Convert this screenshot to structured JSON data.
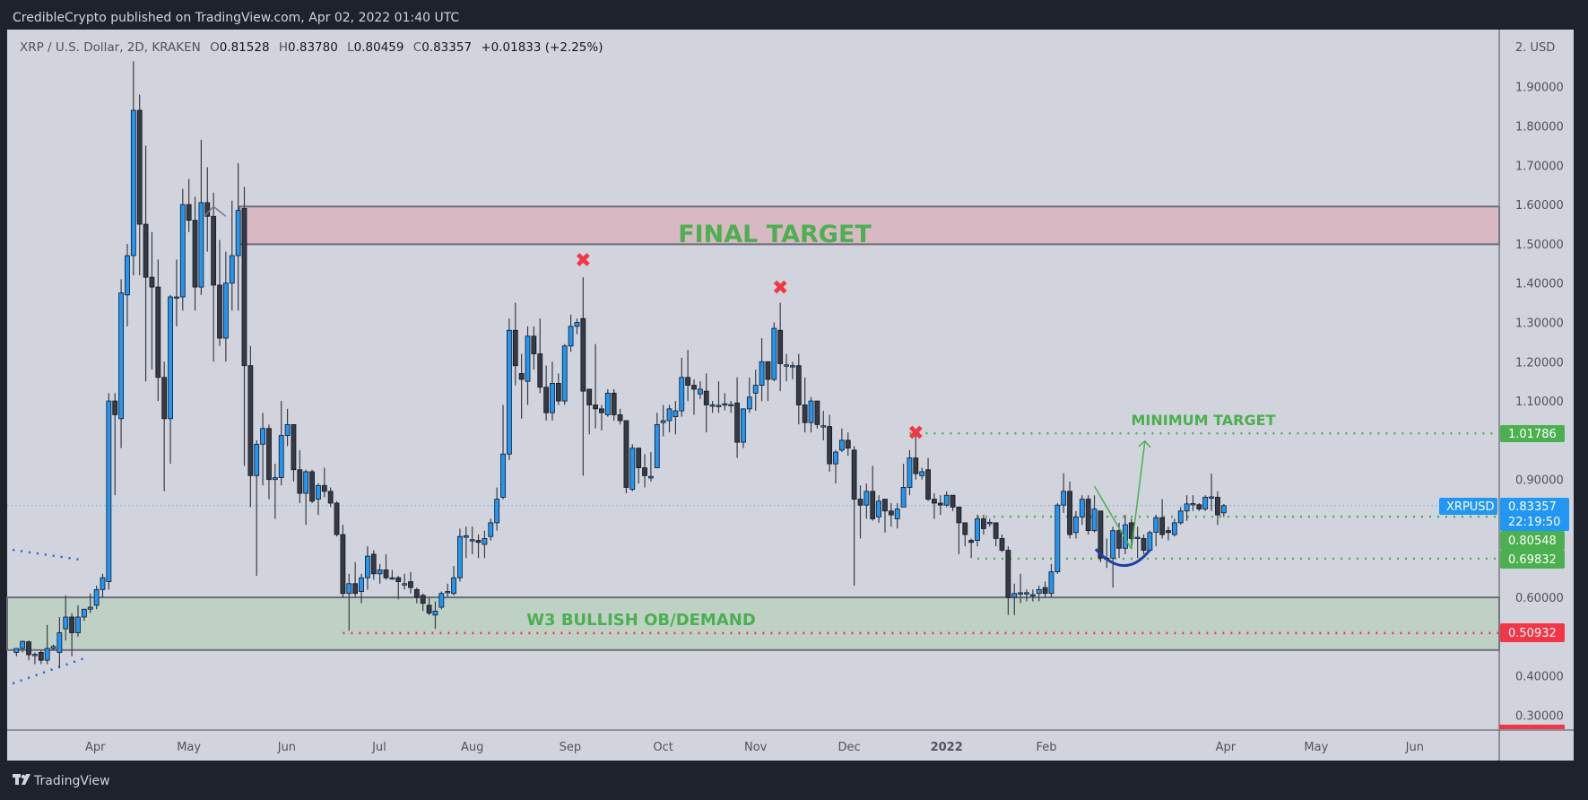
{
  "header": {
    "publisher_line": "CredibleCrypto published on TradingView.com, Apr 02, 2022 01:40 UTC"
  },
  "legend": {
    "symbol": "XRP / U.S. Dollar, 2D, KRAKEN",
    "o_label": "O",
    "o": "0.81528",
    "h_label": "H",
    "h": "0.83780",
    "l_label": "L",
    "l": "0.80459",
    "c_label": "C",
    "c": "0.83357",
    "change": "+0.01833 (+2.25%)"
  },
  "footer": {
    "brand": "TradingView"
  },
  "colors": {
    "up": "#2196f3",
    "down": "#363a45",
    "target_zone": "#d8b9c3",
    "demand_zone": "#bfd1c5",
    "green": "#4caf50",
    "red": "#f23645",
    "blue": "#2196f3",
    "chart_bg": "#d1d4dc",
    "frame": "#1e222d"
  },
  "price_axis": {
    "top_label": "2. USD",
    "ticks": [
      {
        "value": 1.9,
        "label": "1.90000"
      },
      {
        "value": 1.8,
        "label": "1.80000"
      },
      {
        "value": 1.7,
        "label": "1.70000"
      },
      {
        "value": 1.6,
        "label": "1.60000"
      },
      {
        "value": 1.5,
        "label": "1.50000"
      },
      {
        "value": 1.4,
        "label": "1.40000"
      },
      {
        "value": 1.3,
        "label": "1.30000"
      },
      {
        "value": 1.2,
        "label": "1.20000"
      },
      {
        "value": 1.1,
        "label": "1.10000"
      },
      {
        "value": 0.9,
        "label": "0.90000"
      },
      {
        "value": 0.6,
        "label": "0.60000"
      },
      {
        "value": 0.4,
        "label": "0.40000"
      },
      {
        "value": 0.3,
        "label": "0.30000"
      }
    ],
    "badges": {
      "min_target": "1.01786",
      "symbol": "XRPUSD",
      "last_price": "0.83357",
      "countdown": "22:19:50",
      "level_upper": "0.80548",
      "level_lower": "0.69832",
      "invalidation": "0.50932"
    }
  },
  "annotations": {
    "final_target": "FINAL TARGET",
    "minimum_target": "MINIMUM TARGET",
    "demand_zone": "W3 BULLISH OB/DEMAND",
    "x_marker": "✖"
  },
  "chart_data": {
    "type": "candlestick",
    "symbol": "XRPUSD",
    "timeframe": "2D",
    "exchange": "KRAKEN",
    "ylim": [
      0.27,
      2.0
    ],
    "xlim_index": [
      -1.5,
      239.1
    ],
    "x_ticks": [
      {
        "label": "Apr",
        "index": 12.8
      },
      {
        "label": "May",
        "index": 28.0
      },
      {
        "label": "Jun",
        "index": 43.9
      },
      {
        "label": "Jul",
        "index": 58.9
      },
      {
        "label": "Aug",
        "index": 74.0
      },
      {
        "label": "Sep",
        "index": 89.9
      },
      {
        "label": "Oct",
        "index": 105.0
      },
      {
        "label": "Nov",
        "index": 120.0
      },
      {
        "label": "Dec",
        "index": 135.2
      },
      {
        "label": "2022",
        "index": 151.0,
        "bold": true
      },
      {
        "label": "Feb",
        "index": 167.2
      },
      {
        "label": "Apr",
        "index": 196.3
      },
      {
        "label": "May",
        "index": 211.0
      },
      {
        "label": "Jun",
        "index": 227.0
      }
    ],
    "zones": [
      {
        "name": "final-target-zone",
        "from": 1.499,
        "to": 1.595,
        "start_index": 36.2
      },
      {
        "name": "demand-zone",
        "from": 0.466,
        "to": 0.6,
        "start_index": -1.5
      }
    ],
    "levels": [
      {
        "name": "minimum-target-level",
        "price": 1.01786,
        "start_index": 145,
        "color": "green"
      },
      {
        "name": "upper-support-level",
        "price": 0.80548,
        "start_index": 156,
        "color": "green"
      },
      {
        "name": "lower-support-level",
        "price": 0.69832,
        "start_index": 156,
        "color": "green"
      },
      {
        "name": "invalidation-level",
        "price": 0.50932,
        "start_index": 53,
        "color": "red"
      },
      {
        "name": "last-price-line",
        "price": 0.83357,
        "start_index": -1.5,
        "color": "blue"
      }
    ],
    "trendlines": [
      {
        "name": "upper-wedge-line",
        "points": [
          [
            -0.6,
            0.721
          ],
          [
            10.4,
            0.696
          ]
        ]
      },
      {
        "name": "lower-wedge-line",
        "points": [
          [
            -0.6,
            0.381
          ],
          [
            11.0,
            0.445
          ]
        ]
      }
    ],
    "x_markers": [
      [
        92,
        1.46
      ],
      [
        124,
        1.39
      ],
      [
        146,
        1.02
      ]
    ],
    "candles": [
      [
        0.46,
        0.47,
        0.45,
        0.47
      ],
      [
        0.47,
        0.49,
        0.46,
        0.488
      ],
      [
        0.487,
        0.49,
        0.44,
        0.454
      ],
      [
        0.455,
        0.46,
        0.43,
        0.455
      ],
      [
        0.46,
        0.465,
        0.43,
        0.44
      ],
      [
        0.44,
        0.53,
        0.43,
        0.47
      ],
      [
        0.47,
        0.48,
        0.465,
        0.475
      ],
      [
        0.46,
        0.55,
        0.42,
        0.51
      ],
      [
        0.52,
        0.605,
        0.49,
        0.55
      ],
      [
        0.55,
        0.56,
        0.45,
        0.51
      ],
      [
        0.51,
        0.58,
        0.5,
        0.55
      ],
      [
        0.55,
        0.57,
        0.54,
        0.57
      ],
      [
        0.57,
        0.61,
        0.56,
        0.575
      ],
      [
        0.58,
        0.63,
        0.57,
        0.62
      ],
      [
        0.62,
        0.66,
        0.6,
        0.65
      ],
      [
        0.64,
        1.12,
        0.62,
        1.1
      ],
      [
        1.1,
        1.12,
        0.86,
        1.065
      ],
      [
        1.055,
        1.41,
        0.98,
        1.375
      ],
      [
        1.37,
        1.5,
        1.29,
        1.47
      ],
      [
        1.47,
        1.965,
        1.42,
        1.84
      ],
      [
        1.84,
        1.88,
        1.42,
        1.55
      ],
      [
        1.55,
        1.75,
        1.15,
        1.415
      ],
      [
        1.415,
        1.53,
        1.18,
        1.39
      ],
      [
        1.39,
        1.46,
        1.1,
        1.16
      ],
      [
        1.16,
        1.2,
        0.87,
        1.055
      ],
      [
        1.055,
        1.37,
        0.94,
        1.365
      ],
      [
        1.362,
        1.46,
        1.29,
        1.365
      ],
      [
        1.365,
        1.64,
        1.33,
        1.6
      ],
      [
        1.6,
        1.665,
        1.53,
        1.56
      ],
      [
        1.56,
        1.62,
        1.33,
        1.39
      ],
      [
        1.39,
        1.765,
        1.37,
        1.605
      ],
      [
        1.605,
        1.695,
        1.48,
        1.57
      ],
      [
        1.57,
        1.63,
        1.2,
        1.395
      ],
      [
        1.395,
        1.51,
        1.24,
        1.26
      ],
      [
        1.26,
        1.48,
        1.2,
        1.4
      ],
      [
        1.4,
        1.61,
        1.33,
        1.47
      ],
      [
        1.47,
        1.705,
        1.33,
        1.585
      ],
      [
        1.59,
        1.645,
        0.935,
        1.19
      ],
      [
        1.19,
        1.24,
        0.83,
        0.91
      ],
      [
        0.91,
        1.0,
        0.655,
        0.99
      ],
      [
        0.99,
        1.07,
        0.885,
        1.03
      ],
      [
        1.03,
        1.04,
        0.85,
        0.9
      ],
      [
        0.9,
        0.94,
        0.8,
        0.905
      ],
      [
        0.905,
        1.1,
        0.885,
        1.012
      ],
      [
        1.012,
        1.08,
        0.985,
        1.04
      ],
      [
        1.04,
        1.04,
        0.895,
        0.925
      ],
      [
        0.925,
        0.975,
        0.84,
        0.865
      ],
      [
        0.865,
        0.925,
        0.785,
        0.92
      ],
      [
        0.92,
        0.925,
        0.84,
        0.845
      ],
      [
        0.85,
        0.89,
        0.81,
        0.885
      ],
      [
        0.885,
        0.93,
        0.855,
        0.87
      ],
      [
        0.87,
        0.88,
        0.83,
        0.84
      ],
      [
        0.84,
        0.845,
        0.755,
        0.76
      ],
      [
        0.76,
        0.785,
        0.6,
        0.61
      ],
      [
        0.61,
        0.66,
        0.515,
        0.635
      ],
      [
        0.635,
        0.69,
        0.6,
        0.61
      ],
      [
        0.615,
        0.66,
        0.585,
        0.65
      ],
      [
        0.65,
        0.73,
        0.62,
        0.705
      ],
      [
        0.71,
        0.72,
        0.645,
        0.66
      ],
      [
        0.66,
        0.685,
        0.635,
        0.67
      ],
      [
        0.67,
        0.71,
        0.645,
        0.65
      ],
      [
        0.65,
        0.67,
        0.645,
        0.65
      ],
      [
        0.65,
        0.655,
        0.595,
        0.64
      ],
      [
        0.635,
        0.66,
        0.62,
        0.635
      ],
      [
        0.64,
        0.665,
        0.61,
        0.625
      ],
      [
        0.62,
        0.625,
        0.585,
        0.6
      ],
      [
        0.605,
        0.61,
        0.565,
        0.585
      ],
      [
        0.58,
        0.6,
        0.555,
        0.56
      ],
      [
        0.555,
        0.59,
        0.52,
        0.565
      ],
      [
        0.575,
        0.615,
        0.57,
        0.61
      ],
      [
        0.612,
        0.635,
        0.6,
        0.615
      ],
      [
        0.61,
        0.68,
        0.605,
        0.65
      ],
      [
        0.65,
        0.775,
        0.64,
        0.755
      ],
      [
        0.753,
        0.78,
        0.7,
        0.757
      ],
      [
        0.745,
        0.78,
        0.71,
        0.747
      ],
      [
        0.745,
        0.76,
        0.7,
        0.74
      ],
      [
        0.735,
        0.77,
        0.7,
        0.75
      ],
      [
        0.755,
        0.8,
        0.745,
        0.79
      ],
      [
        0.79,
        0.88,
        0.77,
        0.85
      ],
      [
        0.855,
        1.09,
        0.85,
        0.965
      ],
      [
        0.965,
        1.31,
        0.95,
        1.28
      ],
      [
        1.28,
        1.35,
        1.14,
        1.19
      ],
      [
        1.17,
        1.22,
        1.055,
        1.155
      ],
      [
        1.15,
        1.29,
        1.09,
        1.265
      ],
      [
        1.265,
        1.29,
        1.18,
        1.22
      ],
      [
        1.22,
        1.31,
        1.12,
        1.135
      ],
      [
        1.135,
        1.19,
        1.05,
        1.07
      ],
      [
        1.07,
        1.2,
        1.05,
        1.145
      ],
      [
        1.145,
        1.17,
        1.09,
        1.1
      ],
      [
        1.1,
        1.245,
        1.09,
        1.24
      ],
      [
        1.24,
        1.32,
        1.225,
        1.29
      ],
      [
        1.29,
        1.31,
        1.27,
        1.3
      ],
      [
        1.31,
        1.415,
        0.91,
        1.125
      ],
      [
        1.13,
        1.13,
        1.015,
        1.09
      ],
      [
        1.09,
        1.245,
        1.03,
        1.08
      ],
      [
        1.08,
        1.09,
        1.025,
        1.07
      ],
      [
        1.065,
        1.13,
        1.06,
        1.12
      ],
      [
        1.12,
        1.13,
        1.05,
        1.065
      ],
      [
        1.065,
        1.08,
        1.04,
        1.05
      ],
      [
        1.05,
        1.05,
        0.865,
        0.88
      ],
      [
        0.875,
        0.99,
        0.87,
        0.98
      ],
      [
        0.98,
        0.98,
        0.89,
        0.93
      ],
      [
        0.93,
        0.965,
        0.88,
        0.91
      ],
      [
        0.904,
        0.97,
        0.895,
        0.908
      ],
      [
        0.93,
        1.07,
        0.93,
        1.04
      ],
      [
        1.045,
        1.09,
        1.01,
        1.05
      ],
      [
        1.05,
        1.09,
        1.02,
        1.08
      ],
      [
        1.06,
        1.1,
        1.015,
        1.075
      ],
      [
        1.075,
        1.21,
        1.06,
        1.16
      ],
      [
        1.16,
        1.23,
        1.1,
        1.14
      ],
      [
        1.14,
        1.155,
        1.065,
        1.13
      ],
      [
        1.118,
        1.15,
        1.105,
        1.13
      ],
      [
        1.125,
        1.17,
        1.02,
        1.09
      ],
      [
        1.088,
        1.1,
        1.07,
        1.09
      ],
      [
        1.088,
        1.15,
        1.07,
        1.089
      ],
      [
        1.09,
        1.12,
        1.076,
        1.093
      ],
      [
        1.09,
        1.1,
        1.07,
        1.091
      ],
      [
        1.095,
        1.16,
        0.955,
        0.995
      ],
      [
        0.995,
        1.08,
        0.98,
        1.08
      ],
      [
        1.08,
        1.16,
        1.07,
        1.11
      ],
      [
        1.12,
        1.18,
        1.075,
        1.14
      ],
      [
        1.14,
        1.26,
        1.1,
        1.2
      ],
      [
        1.2,
        1.2,
        1.1,
        1.155
      ],
      [
        1.155,
        1.3,
        1.15,
        1.285
      ],
      [
        1.28,
        1.35,
        1.125,
        1.195
      ],
      [
        1.19,
        1.22,
        1.15,
        1.192
      ],
      [
        1.19,
        1.2,
        1.155,
        1.19
      ],
      [
        1.19,
        1.22,
        1.04,
        1.09
      ],
      [
        1.09,
        1.16,
        1.02,
        1.045
      ],
      [
        1.045,
        1.11,
        1.02,
        1.1
      ],
      [
        1.1,
        1.1,
        1.03,
        1.04
      ],
      [
        1.036,
        1.075,
        1.0,
        1.037
      ],
      [
        1.035,
        1.065,
        0.92,
        0.94
      ],
      [
        0.94,
        0.975,
        0.89,
        0.97
      ],
      [
        0.975,
        1.03,
        0.97,
        1.0
      ],
      [
        1.0,
        1.02,
        0.96,
        0.98
      ],
      [
        0.975,
        0.985,
        0.63,
        0.85
      ],
      [
        0.85,
        0.885,
        0.75,
        0.835
      ],
      [
        0.835,
        0.89,
        0.8,
        0.87
      ],
      [
        0.87,
        0.935,
        0.795,
        0.8
      ],
      [
        0.805,
        0.86,
        0.79,
        0.845
      ],
      [
        0.85,
        0.85,
        0.765,
        0.82
      ],
      [
        0.82,
        0.84,
        0.78,
        0.81
      ],
      [
        0.8,
        0.84,
        0.775,
        0.825
      ],
      [
        0.83,
        0.94,
        0.83,
        0.88
      ],
      [
        0.88,
        0.975,
        0.86,
        0.955
      ],
      [
        0.955,
        1.02,
        0.9,
        0.915
      ],
      [
        0.91,
        0.93,
        0.9,
        0.92
      ],
      [
        0.925,
        0.955,
        0.845,
        0.85
      ],
      [
        0.85,
        0.865,
        0.8,
        0.84
      ],
      [
        0.84,
        0.86,
        0.81,
        0.835
      ],
      [
        0.835,
        0.87,
        0.83,
        0.86
      ],
      [
        0.86,
        0.86,
        0.82,
        0.83
      ],
      [
        0.83,
        0.83,
        0.71,
        0.79
      ],
      [
        0.79,
        0.79,
        0.73,
        0.76
      ],
      [
        0.745,
        0.75,
        0.7,
        0.74
      ],
      [
        0.745,
        0.81,
        0.73,
        0.8
      ],
      [
        0.8,
        0.81,
        0.76,
        0.775
      ],
      [
        0.79,
        0.8,
        0.78,
        0.791
      ],
      [
        0.79,
        0.79,
        0.73,
        0.75
      ],
      [
        0.75,
        0.76,
        0.715,
        0.72
      ],
      [
        0.72,
        0.73,
        0.555,
        0.6
      ],
      [
        0.6,
        0.635,
        0.555,
        0.61
      ],
      [
        0.608,
        0.66,
        0.585,
        0.612
      ],
      [
        0.61,
        0.62,
        0.59,
        0.612
      ],
      [
        0.605,
        0.62,
        0.59,
        0.607
      ],
      [
        0.61,
        0.63,
        0.59,
        0.62
      ],
      [
        0.625,
        0.64,
        0.6,
        0.61
      ],
      [
        0.61,
        0.685,
        0.6,
        0.665
      ],
      [
        0.665,
        0.84,
        0.66,
        0.835
      ],
      [
        0.835,
        0.916,
        0.815,
        0.87
      ],
      [
        0.87,
        0.895,
        0.75,
        0.76
      ],
      [
        0.765,
        0.82,
        0.75,
        0.805
      ],
      [
        0.805,
        0.86,
        0.785,
        0.85
      ],
      [
        0.85,
        0.86,
        0.76,
        0.77
      ],
      [
        0.77,
        0.86,
        0.765,
        0.825
      ],
      [
        0.82,
        0.82,
        0.69,
        0.7
      ],
      [
        0.7,
        0.75,
        0.675,
        0.698
      ],
      [
        0.7,
        0.78,
        0.625,
        0.77
      ],
      [
        0.77,
        0.79,
        0.7,
        0.725
      ],
      [
        0.725,
        0.81,
        0.71,
        0.785
      ],
      [
        0.79,
        0.8,
        0.73,
        0.75
      ],
      [
        0.751,
        0.78,
        0.7,
        0.753
      ],
      [
        0.75,
        0.76,
        0.71,
        0.72
      ],
      [
        0.72,
        0.77,
        0.715,
        0.765
      ],
      [
        0.766,
        0.81,
        0.73,
        0.803
      ],
      [
        0.803,
        0.85,
        0.75,
        0.76
      ],
      [
        0.77,
        0.78,
        0.745,
        0.765
      ],
      [
        0.76,
        0.8,
        0.755,
        0.79
      ],
      [
        0.79,
        0.83,
        0.785,
        0.82
      ],
      [
        0.82,
        0.86,
        0.795,
        0.838
      ],
      [
        0.837,
        0.86,
        0.82,
        0.839
      ],
      [
        0.836,
        0.84,
        0.82,
        0.825
      ],
      [
        0.825,
        0.86,
        0.82,
        0.855
      ],
      [
        0.854,
        0.915,
        0.82,
        0.856
      ],
      [
        0.855,
        0.87,
        0.785,
        0.81
      ],
      [
        0.81528,
        0.8378,
        0.80459,
        0.83357
      ]
    ]
  }
}
